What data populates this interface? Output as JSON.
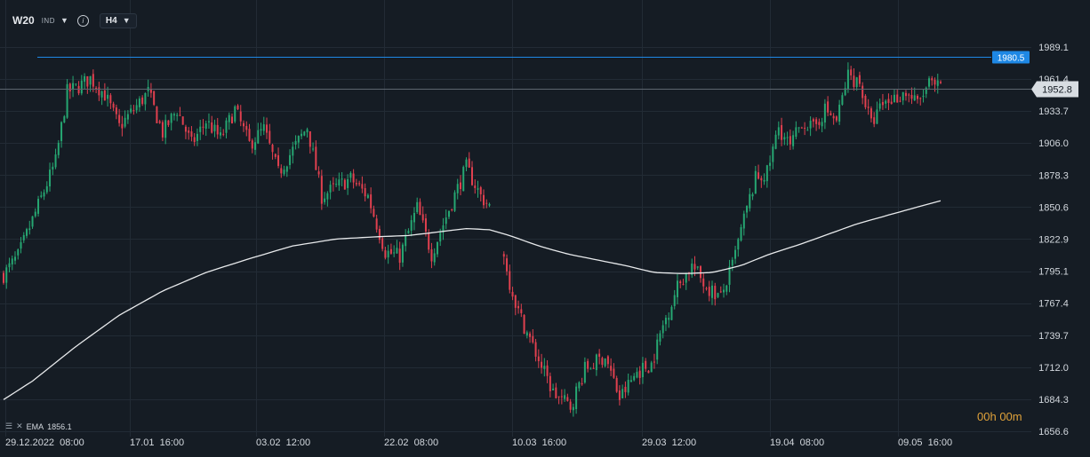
{
  "header": {
    "symbol": "W20",
    "market": "IND",
    "timeframe": "H4",
    "icons": {
      "market_dropdown": "caret-down-icon",
      "info": "info-icon",
      "timeframe_dropdown": "caret-down-icon"
    }
  },
  "indicator": {
    "name": "EMA",
    "value": "1856.1",
    "icons": [
      "bars-icon",
      "close-icon"
    ]
  },
  "countdown": {
    "hours": "00",
    "h": "h",
    "minutes": "00",
    "m": "m"
  },
  "colors": {
    "background": "#151c24",
    "grid": "#222b35",
    "bull": "#26a772",
    "bear": "#e0404f",
    "ema": "#e8eaec",
    "hline": "#1e88e5",
    "price_line": "#5d6670",
    "countdown": "#e0a23a"
  },
  "chart_data": {
    "type": "candlestick",
    "title": "",
    "y_axis": {
      "ticks": [
        "1989.1",
        "1961.4",
        "1933.7",
        "1906.0",
        "1878.3",
        "1850.6",
        "1822.9",
        "1795.1",
        "1767.4",
        "1739.7",
        "1712.0",
        "1684.3",
        "1656.6"
      ],
      "range": [
        1650,
        2008
      ]
    },
    "x_axis": {
      "ticks": [
        "29.12.2022  08:00",
        "17.01  16:00",
        "03.02  12:00",
        "22.02  08:00",
        "10.03  16:00",
        "29.03  12:00",
        "19.04  08:00",
        "09.05  16:00"
      ]
    },
    "horizontal_line": {
      "value": 1980.5,
      "label": "1980.5"
    },
    "current_price": {
      "value": 1952.8,
      "label": "1952.8"
    },
    "ema_last": 1856.1,
    "close_path": [
      [
        0,
        1792
      ],
      [
        5,
        1808
      ],
      [
        12,
        1852
      ],
      [
        18,
        1890
      ],
      [
        22,
        1950
      ],
      [
        26,
        1955
      ],
      [
        30,
        1962
      ],
      [
        35,
        1948
      ],
      [
        40,
        1920
      ],
      [
        45,
        1935
      ],
      [
        50,
        1950
      ],
      [
        55,
        1915
      ],
      [
        60,
        1935
      ],
      [
        65,
        1905
      ],
      [
        70,
        1925
      ],
      [
        75,
        1910
      ],
      [
        80,
        1935
      ],
      [
        85,
        1905
      ],
      [
        90,
        1918
      ],
      [
        95,
        1880
      ],
      [
        100,
        1900
      ],
      [
        105,
        1920
      ],
      [
        110,
        1860
      ],
      [
        115,
        1868
      ],
      [
        120,
        1875
      ],
      [
        126,
        1860
      ],
      [
        132,
        1812
      ],
      [
        137,
        1808
      ],
      [
        143,
        1850
      ],
      [
        148,
        1810
      ],
      [
        155,
        1855
      ],
      [
        160,
        1885
      ],
      [
        165,
        1860
      ],
      [
        169,
        1848
      ],
      [
        173,
        1803
      ],
      [
        178,
        1760
      ],
      [
        183,
        1730
      ],
      [
        190,
        1690
      ],
      [
        196,
        1678
      ],
      [
        201,
        1710
      ],
      [
        208,
        1722
      ],
      [
        213,
        1685
      ],
      [
        219,
        1708
      ],
      [
        224,
        1715
      ],
      [
        228,
        1748
      ],
      [
        233,
        1782
      ],
      [
        238,
        1800
      ],
      [
        243,
        1782
      ],
      [
        248,
        1772
      ],
      [
        252,
        1800
      ],
      [
        256,
        1840
      ],
      [
        260,
        1875
      ],
      [
        264,
        1880
      ],
      [
        268,
        1920
      ],
      [
        272,
        1902
      ],
      [
        276,
        1925
      ],
      [
        280,
        1918
      ],
      [
        284,
        1935
      ],
      [
        288,
        1925
      ],
      [
        292,
        1965
      ],
      [
        296,
        1958
      ],
      [
        300,
        1922
      ],
      [
        304,
        1940
      ],
      [
        308,
        1945
      ],
      [
        312,
        1950
      ],
      [
        316,
        1940
      ],
      [
        320,
        1957
      ],
      [
        324,
        1952.8
      ]
    ],
    "ema_path": [
      [
        0,
        1684
      ],
      [
        10,
        1700
      ],
      [
        25,
        1730
      ],
      [
        40,
        1757
      ],
      [
        55,
        1778
      ],
      [
        70,
        1794
      ],
      [
        85,
        1806
      ],
      [
        100,
        1817
      ],
      [
        115,
        1823
      ],
      [
        130,
        1825
      ],
      [
        140,
        1826
      ],
      [
        150,
        1829
      ],
      [
        160,
        1832
      ],
      [
        168,
        1831
      ],
      [
        175,
        1826
      ],
      [
        185,
        1817
      ],
      [
        195,
        1810
      ],
      [
        205,
        1805
      ],
      [
        215,
        1800
      ],
      [
        225,
        1794
      ],
      [
        235,
        1793
      ],
      [
        245,
        1794
      ],
      [
        255,
        1800
      ],
      [
        265,
        1810
      ],
      [
        275,
        1818
      ],
      [
        285,
        1827
      ],
      [
        295,
        1836
      ],
      [
        305,
        1843
      ],
      [
        315,
        1850
      ],
      [
        324,
        1856.1
      ]
    ]
  }
}
